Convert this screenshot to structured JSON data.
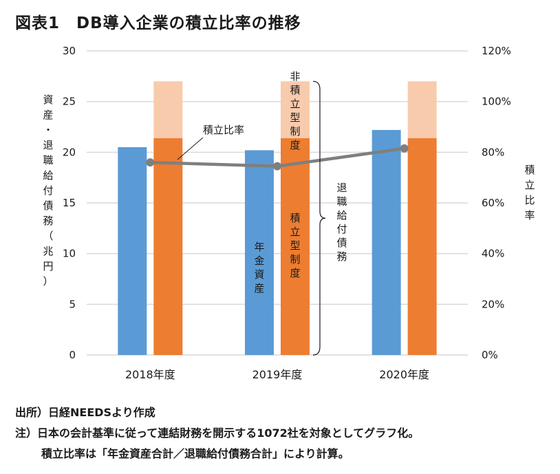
{
  "title": "図表1　DB導入企業の積立比率の推移",
  "chart_data": {
    "type": "bar",
    "categories": [
      "2018年度",
      "2019年度",
      "2020年度"
    ],
    "series": [
      {
        "name": "年金資産",
        "values": [
          20.5,
          20.2,
          22.2
        ],
        "color": "#5b9bd5"
      },
      {
        "name": "積立型制度",
        "values": [
          21.4,
          21.4,
          21.4
        ],
        "color": "#ed7d31",
        "stack": "退職給付債務"
      },
      {
        "name": "非積立型制度",
        "values": [
          5.6,
          5.6,
          5.6
        ],
        "color": "#f8cbad",
        "stack": "退職給付債務"
      },
      {
        "name": "積立比率",
        "type": "line",
        "axis": "right",
        "values": [
          0.76,
          0.745,
          0.815
        ],
        "color": "#7f7f7f"
      }
    ],
    "ylabel": "資産・退職給付債務（兆円）",
    "ylabel_right": "積立比率",
    "ylim": [
      0,
      30
    ],
    "yticks": [
      0,
      5,
      10,
      15,
      20,
      25,
      30
    ],
    "ylim_right": [
      0,
      1.2
    ],
    "yticks_right": [
      "0%",
      "20%",
      "40%",
      "60%",
      "80%",
      "100%",
      "120%"
    ],
    "grid": true,
    "annotations": {
      "line_label": "積立比率",
      "brace_label": "退職給付債務",
      "asset_label": "年金資産",
      "funded_label": "積立型制度",
      "unfunded_label": "非積立型制度"
    }
  },
  "notes": {
    "source": "出所）日経NEEDSより作成",
    "note1": "注）日本の会計基準に従って連結財務を開示する1072社を対象としてグラフ化。",
    "note2": "積立比率は「年金資産合計／退職給付債務合計」により計算。"
  }
}
